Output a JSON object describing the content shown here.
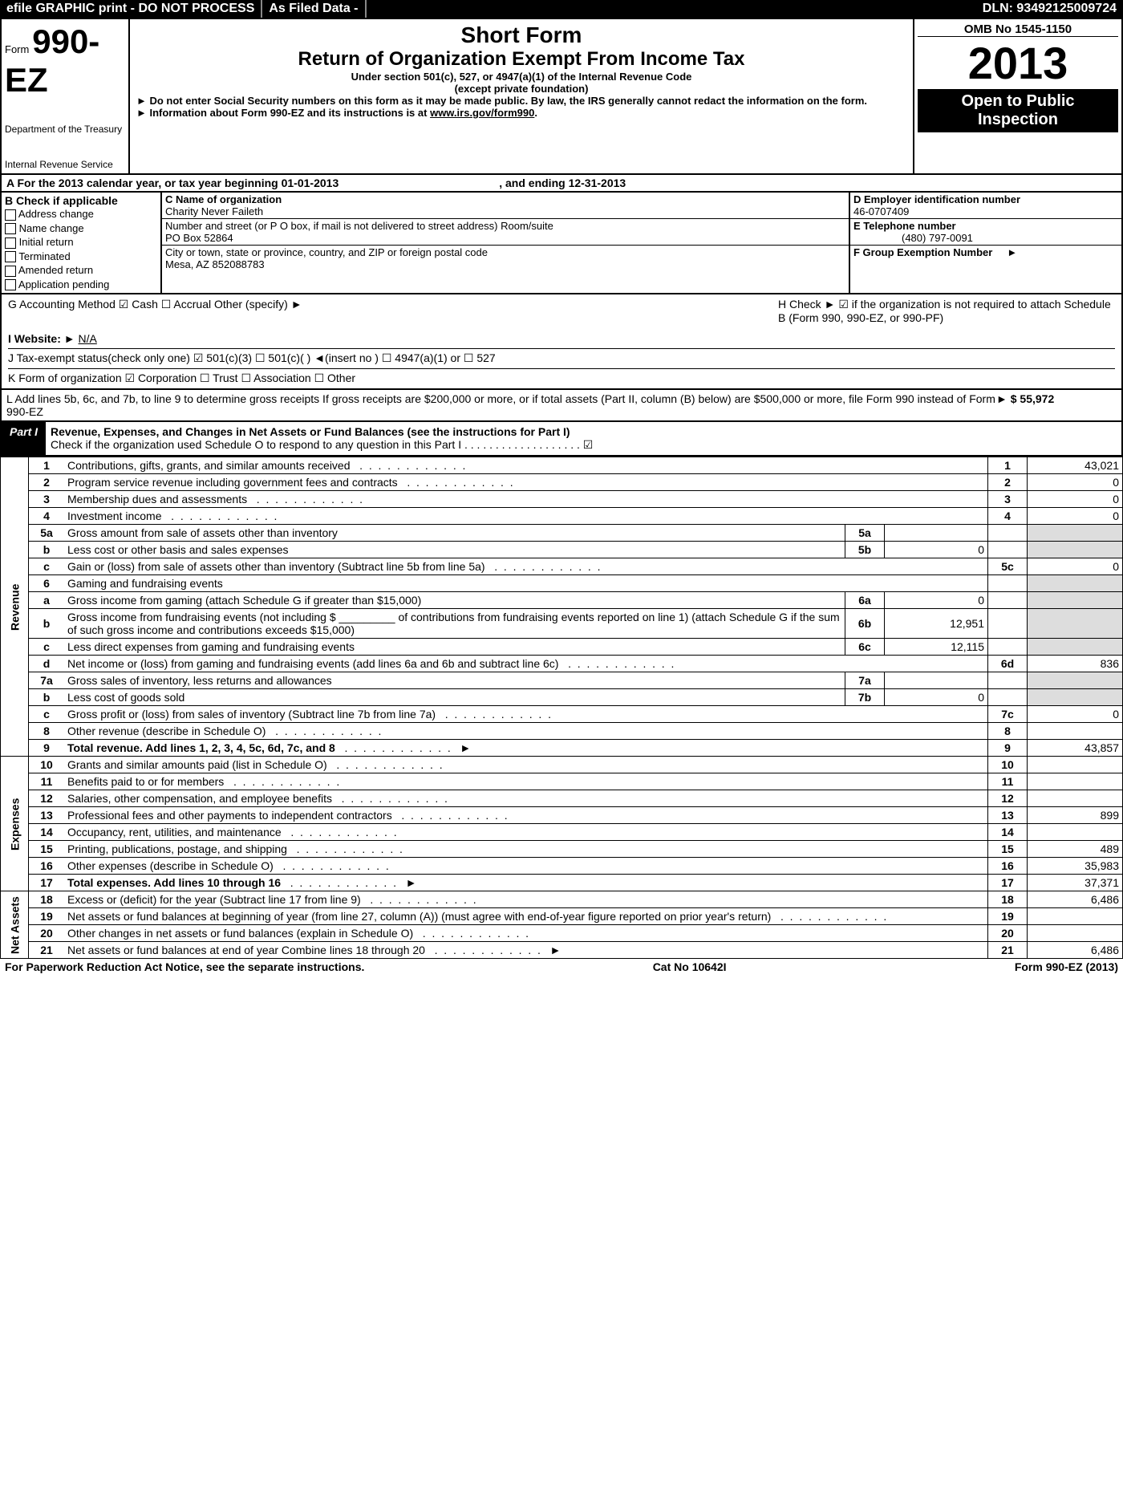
{
  "top_bar": {
    "seg1": "efile GRAPHIC print - DO NOT PROCESS",
    "seg2": "As Filed Data -",
    "dln": "DLN: 93492125009724"
  },
  "header": {
    "form_small": "Form",
    "form_big": "990-EZ",
    "dept1": "Department of the Treasury",
    "dept2": "Internal Revenue Service",
    "title1": "Short Form",
    "title2": "Return of Organization Exempt From Income Tax",
    "sub1": "Under section 501(c), 527, or 4947(a)(1) of the Internal Revenue Code",
    "sub2": "(except private foundation)",
    "note1": "► Do not enter Social Security numbers on this form as it may be made public. By law, the IRS generally cannot redact the information on the form.",
    "note2": "► Information about Form 990-EZ and its instructions is at www.irs.gov/form990.",
    "omb": "OMB No 1545-1150",
    "year": "2013",
    "open1": "Open to Public",
    "open2": "Inspection"
  },
  "section_a": {
    "a_line": "A For the 2013 calendar year, or tax year beginning 01-01-2013",
    "a_end": ", and ending 12-31-2013",
    "b_label": "B Check if applicable",
    "b_items": [
      "Address change",
      "Name change",
      "Initial return",
      "Terminated",
      "Amended return",
      "Application pending"
    ],
    "c_label": "C Name of organization",
    "c_name": "Charity Never Faileth",
    "c_addr_label": "Number and street (or P O box, if mail is not delivered to street address) Room/suite",
    "c_addr": "PO Box 52864",
    "c_city_label": "City or town, state or province, country, and ZIP or foreign postal code",
    "c_city": "Mesa, AZ  852088783",
    "d_label": "D Employer identification number",
    "d_val": "46-0707409",
    "e_label": "E Telephone number",
    "e_val": "(480) 797-0091",
    "f_label": "F Group Exemption Number",
    "f_arrow": "►"
  },
  "middle": {
    "g": "G Accounting Method   ☑ Cash  ☐ Accrual  Other (specify) ►",
    "h": "H  Check ► ☑ if the organization is not required to attach Schedule B (Form 990, 990-EZ, or 990-PF)",
    "i": "I Website: ► N/A",
    "j": "J Tax-exempt status(check only one) ☑ 501(c)(3)  ☐ 501(c)( ) ◄(insert no ) ☐ 4947(a)(1) or ☐ 527",
    "k": "K Form of organization  ☑ Corporation  ☐ Trust  ☐ Association  ☐ Other",
    "l": "L Add lines 5b, 6c, and 7b, to line 9 to determine gross receipts  If gross receipts are $200,000 or more, or if total assets (Part II, column (B) below) are $500,000 or more, file Form 990 instead of Form 990-EZ",
    "l_amt": "► $ 55,972"
  },
  "part1": {
    "label": "Part I",
    "title": "Revenue, Expenses, and Changes in Net Assets or Fund Balances (see the instructions for Part I)",
    "sub": "Check if the organization used Schedule O to respond to any question in this Part I  .  .  .  .  .  .  .  .  .  .  .  .  .  .  .  .  .  .  .  ☑"
  },
  "sections": {
    "revenue": "Revenue",
    "expenses": "Expenses",
    "net_assets": "Net Assets"
  },
  "rows": [
    {
      "side": "",
      "n": "1",
      "desc": "Contributions, gifts, grants, and similar amounts received",
      "num": "1",
      "amt": "43,021"
    },
    {
      "side": "",
      "n": "2",
      "desc": "Program service revenue including government fees and contracts",
      "num": "2",
      "amt": "0"
    },
    {
      "side": "",
      "n": "3",
      "desc": "Membership dues and assessments",
      "num": "3",
      "amt": "0"
    },
    {
      "side": "",
      "n": "4",
      "desc": "Investment income",
      "num": "4",
      "amt": "0"
    },
    {
      "side": "",
      "n": "5a",
      "desc": "Gross amount from sale of assets other than inventory",
      "sub_n": "5a",
      "sub_amt": ""
    },
    {
      "side": "",
      "n": "b",
      "desc": "Less cost or other basis and sales expenses",
      "sub_n": "5b",
      "sub_amt": "0"
    },
    {
      "side": "",
      "n": "c",
      "desc": "Gain or (loss) from sale of assets other than inventory (Subtract line 5b from line 5a)",
      "num": "5c",
      "amt": "0"
    },
    {
      "side": "",
      "n": "6",
      "desc": "Gaming and fundraising events",
      "shade": true
    },
    {
      "side": "",
      "n": "a",
      "desc": "Gross income from gaming (attach Schedule G if greater than $15,000)",
      "sub_n": "6a",
      "sub_amt": "0"
    },
    {
      "side": "",
      "n": "b",
      "desc": "Gross income from fundraising events (not including $ _________ of contributions from fundraising events reported on line 1) (attach Schedule G if the sum of such gross income and contributions exceeds $15,000)",
      "sub_n": "6b",
      "sub_amt": "12,951"
    },
    {
      "side": "",
      "n": "c",
      "desc": "Less direct expenses from gaming and fundraising events",
      "sub_n": "6c",
      "sub_amt": "12,115"
    },
    {
      "side": "",
      "n": "d",
      "desc": "Net income or (loss) from gaming and fundraising events (add lines 6a and 6b and subtract line 6c)",
      "num": "6d",
      "amt": "836"
    },
    {
      "side": "",
      "n": "7a",
      "desc": "Gross sales of inventory, less returns and allowances",
      "sub_n": "7a",
      "sub_amt": ""
    },
    {
      "side": "",
      "n": "b",
      "desc": "Less cost of goods sold",
      "sub_n": "7b",
      "sub_amt": "0"
    },
    {
      "side": "",
      "n": "c",
      "desc": "Gross profit or (loss) from sales of inventory (Subtract line 7b from line 7a)",
      "num": "7c",
      "amt": "0"
    },
    {
      "side": "",
      "n": "8",
      "desc": "Other revenue (describe in Schedule O)",
      "num": "8",
      "amt": ""
    },
    {
      "side": "",
      "n": "9",
      "desc": "Total revenue. Add lines 1, 2, 3, 4, 5c, 6d, 7c, and 8",
      "num": "9",
      "amt": "43,857",
      "bold": true,
      "arrow": true
    },
    {
      "side": "",
      "n": "10",
      "desc": "Grants and similar amounts paid (list in Schedule O)",
      "num": "10",
      "amt": ""
    },
    {
      "side": "",
      "n": "11",
      "desc": "Benefits paid to or for members",
      "num": "11",
      "amt": ""
    },
    {
      "side": "",
      "n": "12",
      "desc": "Salaries, other compensation, and employee benefits",
      "num": "12",
      "amt": ""
    },
    {
      "side": "",
      "n": "13",
      "desc": "Professional fees and other payments to independent contractors",
      "num": "13",
      "amt": "899"
    },
    {
      "side": "",
      "n": "14",
      "desc": "Occupancy, rent, utilities, and maintenance",
      "num": "14",
      "amt": ""
    },
    {
      "side": "",
      "n": "15",
      "desc": "Printing, publications, postage, and shipping",
      "num": "15",
      "amt": "489"
    },
    {
      "side": "",
      "n": "16",
      "desc": "Other expenses (describe in Schedule O)",
      "num": "16",
      "amt": "35,983"
    },
    {
      "side": "",
      "n": "17",
      "desc": "Total expenses. Add lines 10 through 16",
      "num": "17",
      "amt": "37,371",
      "bold": true,
      "arrow": true
    },
    {
      "side": "",
      "n": "18",
      "desc": "Excess or (deficit) for the year (Subtract line 17 from line 9)",
      "num": "18",
      "amt": "6,486"
    },
    {
      "side": "",
      "n": "19",
      "desc": "Net assets or fund balances at beginning of year (from line 27, column (A)) (must agree with end-of-year figure reported on prior year's return)",
      "num": "19",
      "amt": ""
    },
    {
      "side": "",
      "n": "20",
      "desc": "Other changes in net assets or fund balances (explain in Schedule O)",
      "num": "20",
      "amt": ""
    },
    {
      "side": "",
      "n": "21",
      "desc": "Net assets or fund balances at end of year  Combine lines 18 through 20",
      "num": "21",
      "amt": "6,486",
      "arrow": true
    }
  ],
  "footer": {
    "left": "For Paperwork Reduction Act Notice, see the separate instructions.",
    "mid": "Cat No 10642I",
    "right": "Form 990-EZ (2013)"
  }
}
